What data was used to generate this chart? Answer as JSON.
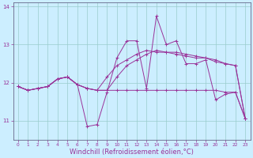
{
  "background_color": "#cceeff",
  "grid_color": "#99cccc",
  "line_color": "#993399",
  "x_hours": [
    0,
    1,
    2,
    3,
    4,
    5,
    6,
    7,
    8,
    9,
    10,
    11,
    12,
    13,
    14,
    15,
    16,
    17,
    18,
    19,
    20,
    21,
    22,
    23
  ],
  "lines": [
    [
      11.9,
      11.8,
      11.85,
      11.9,
      12.1,
      12.15,
      11.95,
      11.85,
      11.8,
      11.8,
      11.8,
      11.8,
      11.8,
      11.8,
      11.8,
      11.8,
      11.8,
      11.8,
      11.8,
      11.8,
      11.8,
      11.75,
      11.75,
      11.05
    ],
    [
      11.9,
      11.8,
      11.85,
      11.9,
      12.1,
      12.15,
      11.95,
      10.85,
      10.9,
      11.75,
      12.65,
      13.1,
      13.1,
      11.85,
      13.75,
      13.0,
      13.1,
      12.5,
      12.5,
      12.6,
      11.55,
      11.7,
      11.75,
      11.05
    ],
    [
      11.9,
      11.8,
      11.85,
      11.9,
      12.1,
      12.15,
      11.95,
      11.85,
      11.8,
      12.15,
      12.45,
      12.6,
      12.75,
      12.85,
      12.8,
      12.8,
      12.8,
      12.75,
      12.7,
      12.65,
      12.55,
      12.5,
      12.45,
      11.05
    ],
    [
      11.9,
      11.8,
      11.85,
      11.9,
      12.1,
      12.15,
      11.95,
      11.85,
      11.8,
      11.8,
      12.15,
      12.45,
      12.6,
      12.75,
      12.85,
      12.8,
      12.75,
      12.7,
      12.65,
      12.65,
      12.6,
      12.5,
      12.45,
      11.05
    ]
  ],
  "ylim": [
    10.5,
    14.1
  ],
  "yticks": [
    11,
    12,
    13,
    14
  ],
  "xticks": [
    0,
    1,
    2,
    3,
    4,
    5,
    6,
    7,
    8,
    9,
    10,
    11,
    12,
    13,
    14,
    15,
    16,
    17,
    18,
    19,
    20,
    21,
    22,
    23
  ],
  "xlabel": "Windchill (Refroidissement éolien,°C)",
  "tick_fontsize": 5,
  "xlabel_fontsize": 6,
  "linewidth": 0.7,
  "markersize": 2.5
}
